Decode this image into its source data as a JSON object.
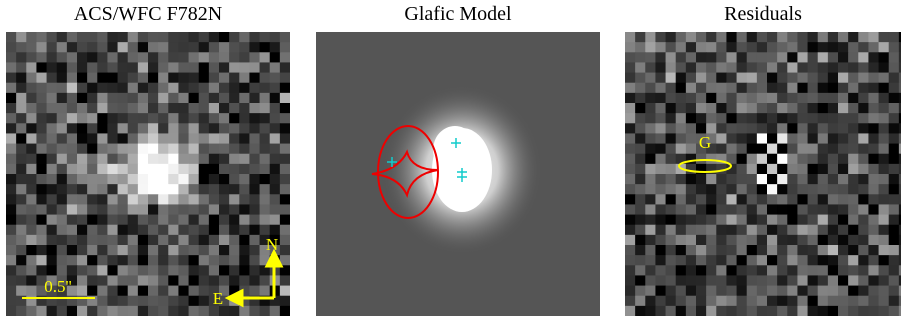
{
  "panels": [
    {
      "title": "ACS/WFC F782N",
      "scale_label": "0.5''",
      "north_label": "N",
      "east_label": "E"
    },
    {
      "title": "Glafic Model"
    },
    {
      "title": "Residuals",
      "galaxy_label": "G"
    }
  ]
}
